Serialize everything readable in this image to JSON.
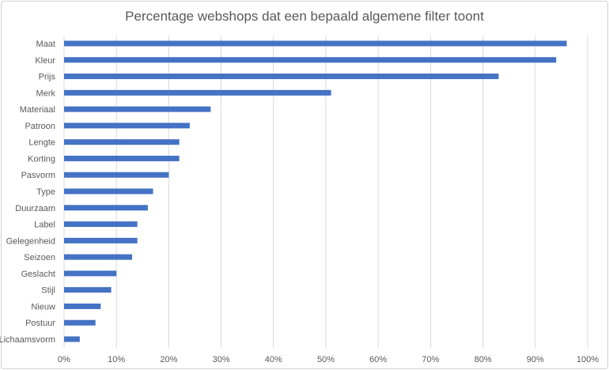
{
  "chart_data": {
    "type": "bar",
    "orientation": "horizontal",
    "title": "Percentage webshops dat een bepaald algemene filter toont",
    "categories": [
      "Maat",
      "Kleur",
      "Prijs",
      "Merk",
      "Materiaal",
      "Patroon",
      "Lengte",
      "Korting",
      "Pasvorm",
      "Type",
      "Duurzaam",
      "Label",
      "Gelegenheid",
      "Seizoen",
      "Geslacht",
      "Stijl",
      "Nieuw",
      "Postuur",
      "Lichaamsvorm"
    ],
    "values": [
      96,
      94,
      83,
      51,
      28,
      24,
      22,
      22,
      20,
      17,
      16,
      14,
      14,
      13,
      10,
      9,
      7,
      6,
      3
    ],
    "x_ticks": [
      "0%",
      "10%",
      "20%",
      "30%",
      "40%",
      "50%",
      "60%",
      "70%",
      "80%",
      "90%",
      "100%"
    ],
    "xlim": [
      0,
      100
    ],
    "grid": true,
    "legend": "none",
    "bar_color": "#4472C4",
    "grid_color": "#d9d9d9"
  }
}
